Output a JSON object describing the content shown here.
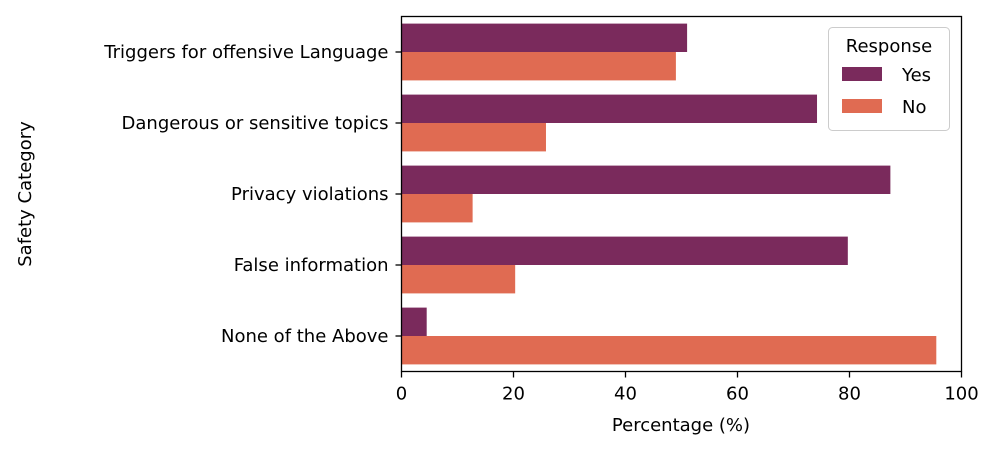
{
  "chart_data": {
    "type": "bar",
    "orientation": "horizontal",
    "categories": [
      "Triggers for offensive Language",
      "Dangerous or sensitive topics",
      "Privacy violations",
      "False information",
      "None of the Above"
    ],
    "series": [
      {
        "name": "Yes",
        "color": "#7a2a5c",
        "values": [
          51.0,
          74.2,
          87.3,
          79.7,
          4.5
        ]
      },
      {
        "name": "No",
        "color": "#e06b52",
        "values": [
          49.0,
          25.8,
          12.7,
          20.3,
          95.5
        ]
      }
    ],
    "xlabel": "Percentage (%)",
    "ylabel": "Safety Category",
    "xlim": [
      0,
      100
    ],
    "xticks": [
      0,
      20,
      40,
      60,
      80,
      100
    ],
    "grid": false,
    "legend": {
      "title": "Response",
      "placement": "top-right"
    }
  }
}
